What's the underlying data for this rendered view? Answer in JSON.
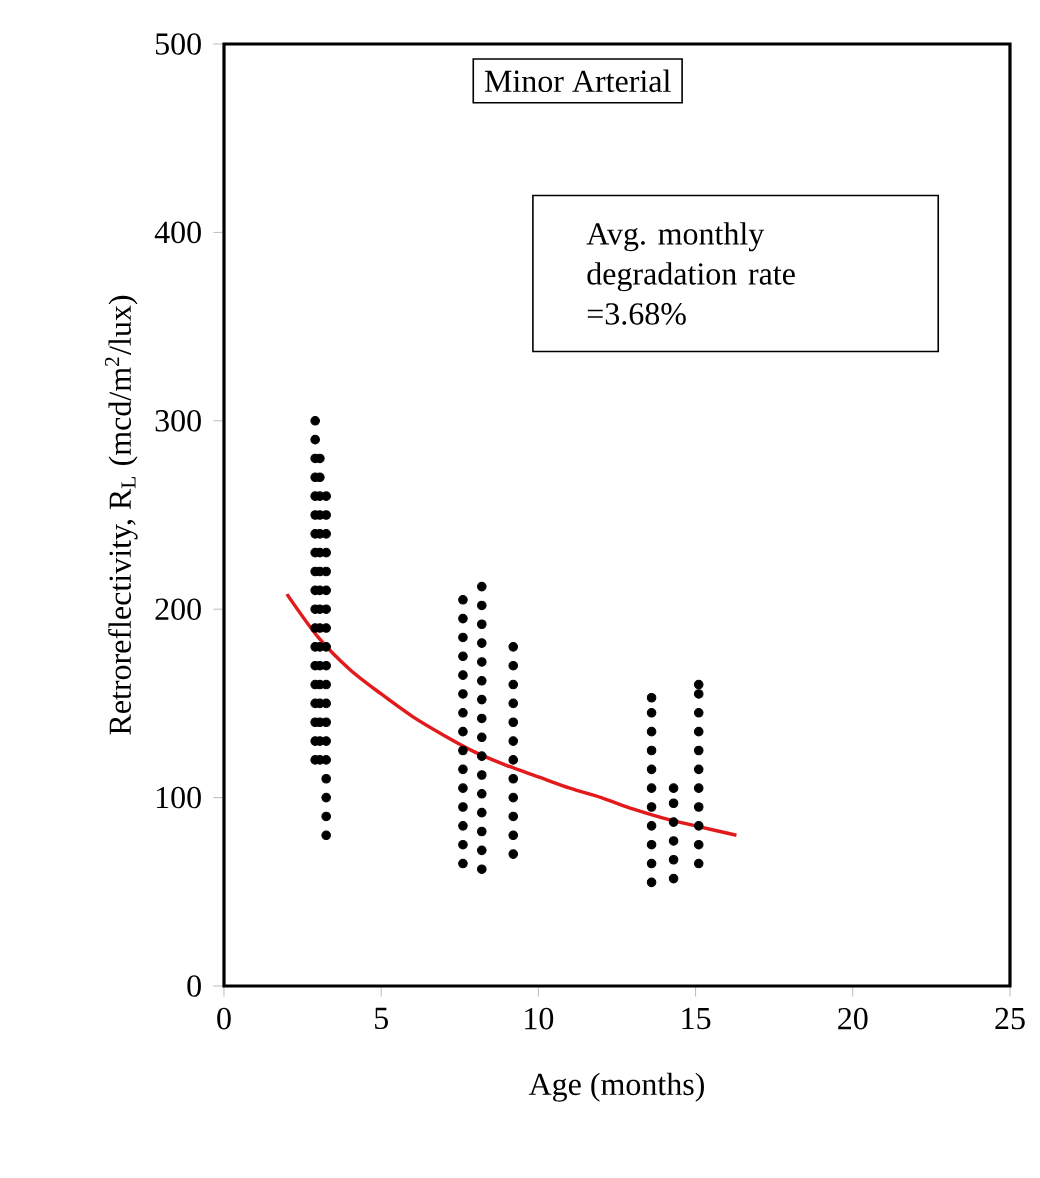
{
  "chart_data": {
    "type": "scatter",
    "title": "Minor Arterial",
    "xlabel": "Age (months)",
    "ylabel": "Retroreflectivity, R$_{L}$ (mcd/m$^{2}$/lux)",
    "annotations": [
      "Avg. monthly degradation rate =3.68%"
    ],
    "xlim": [
      0,
      25
    ],
    "ylim": [
      0,
      500
    ],
    "xticks": [
      0,
      5,
      10,
      15,
      20,
      25
    ],
    "yticks": [
      0,
      100,
      200,
      300,
      400,
      500
    ],
    "series": [
      {
        "color": "#000000",
        "marker": "circle",
        "x": [
          2.9,
          2.9,
          2.9,
          2.9,
          2.9,
          2.9,
          2.9,
          2.9,
          2.9,
          2.9,
          2.9,
          2.9,
          2.9,
          2.9,
          2.9,
          2.9,
          2.9,
          2.9,
          2.9,
          3.05,
          3.05,
          3.05,
          3.05,
          3.05,
          3.05,
          3.05,
          3.05,
          3.05,
          3.05,
          3.05,
          3.05,
          3.05,
          3.05,
          3.05,
          3.05,
          3.05,
          3.25,
          3.25,
          3.25,
          3.25,
          3.25,
          3.25,
          3.25,
          3.25,
          3.25,
          3.25,
          3.25,
          3.25,
          3.25,
          3.25,
          3.25,
          3.25,
          3.25,
          3.25,
          3.25,
          7.6,
          7.6,
          7.6,
          7.6,
          7.6,
          7.6,
          7.6,
          7.6,
          7.6,
          7.6,
          7.6,
          7.6,
          7.6,
          7.6,
          7.6,
          8.2,
          8.2,
          8.2,
          8.2,
          8.2,
          8.2,
          8.2,
          8.2,
          8.2,
          8.2,
          8.2,
          8.2,
          8.2,
          8.2,
          8.2,
          8.2,
          9.2,
          9.2,
          9.2,
          9.2,
          9.2,
          9.2,
          9.2,
          9.2,
          9.2,
          9.2,
          9.2,
          9.2,
          13.6,
          13.6,
          13.6,
          13.6,
          13.6,
          13.6,
          13.6,
          13.6,
          13.6,
          13.6,
          13.6,
          14.3,
          14.3,
          14.3,
          14.3,
          14.3,
          14.3,
          15.1,
          15.1,
          15.1,
          15.1,
          15.1,
          15.1,
          15.1,
          15.1,
          15.1,
          15.1,
          15.1
        ],
        "values": [
          120,
          130,
          140,
          150,
          160,
          170,
          180,
          190,
          200,
          210,
          220,
          230,
          240,
          250,
          260,
          270,
          280,
          290,
          300,
          120,
          130,
          140,
          150,
          160,
          170,
          180,
          190,
          200,
          210,
          220,
          230,
          240,
          250,
          260,
          270,
          280,
          80,
          90,
          100,
          110,
          120,
          130,
          140,
          150,
          160,
          170,
          180,
          190,
          200,
          210,
          220,
          230,
          240,
          250,
          260,
          65,
          75,
          85,
          95,
          105,
          115,
          125,
          135,
          145,
          155,
          165,
          175,
          185,
          195,
          205,
          62,
          72,
          82,
          92,
          102,
          112,
          122,
          132,
          142,
          152,
          162,
          172,
          182,
          192,
          202,
          212,
          70,
          80,
          90,
          100,
          110,
          120,
          130,
          140,
          150,
          160,
          170,
          180,
          55,
          65,
          75,
          85,
          95,
          105,
          115,
          125,
          135,
          145,
          153,
          57,
          67,
          77,
          87,
          97,
          105,
          65,
          75,
          85,
          95,
          105,
          115,
          125,
          135,
          145,
          155,
          160
        ]
      },
      {
        "type": "line",
        "color": "#e31a1c",
        "marker": "none",
        "x": [
          2,
          3,
          4,
          5,
          6,
          7,
          8,
          9,
          10,
          11,
          12,
          13,
          14,
          15,
          16.3
        ],
        "values": [
          208,
          185,
          168,
          155,
          143,
          133,
          124,
          117,
          111,
          105,
          100,
          94,
          89,
          85,
          80
        ]
      }
    ]
  }
}
